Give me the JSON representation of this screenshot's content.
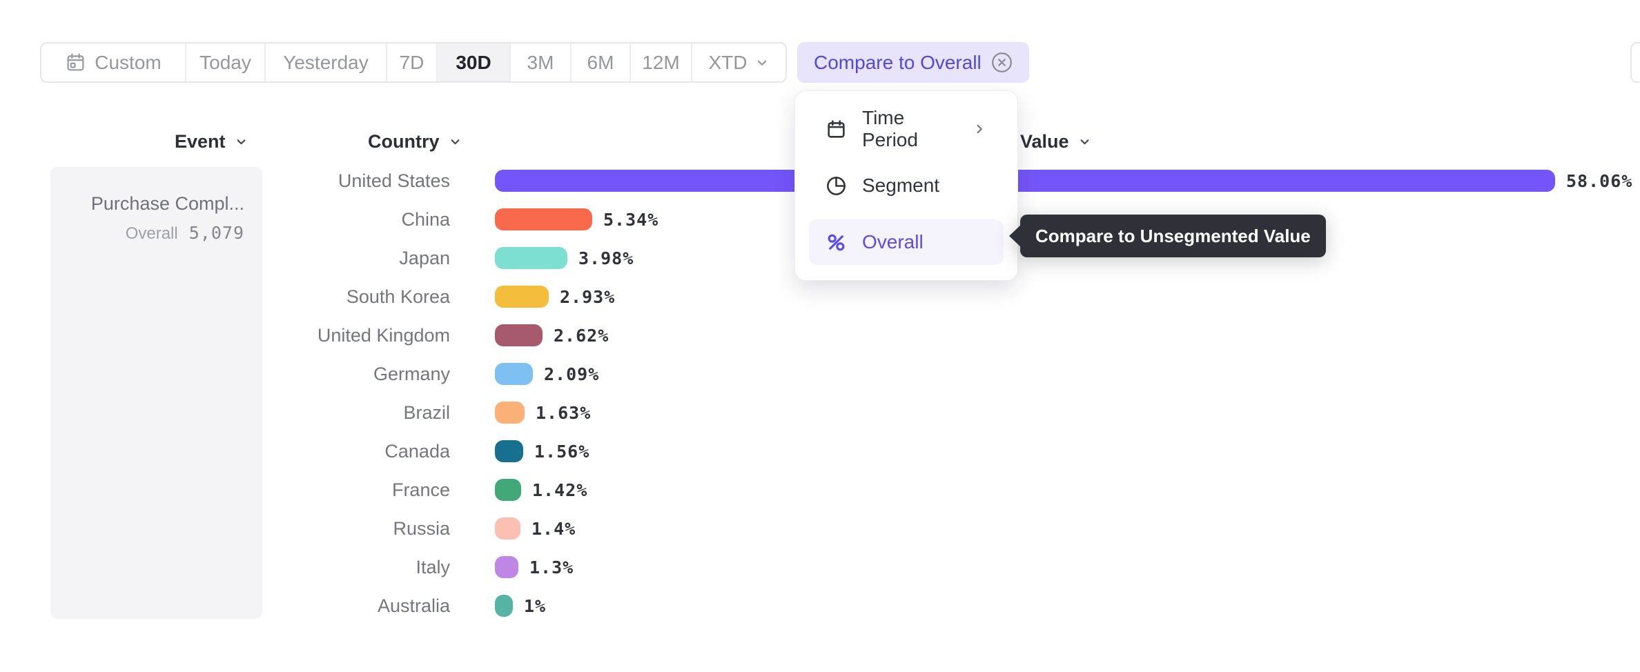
{
  "toolbar": {
    "items": [
      "Custom",
      "Today",
      "Yesterday",
      "7D",
      "30D",
      "3M",
      "6M",
      "12M",
      "XTD"
    ],
    "selected": "30D"
  },
  "compare_button": {
    "label": "Compare to Overall"
  },
  "dropdown_menu": {
    "items": [
      {
        "label": "Time Period",
        "icon": "calendar-icon",
        "submenu": true,
        "selected": false
      },
      {
        "label": "Segment",
        "icon": "segment-icon",
        "submenu": false,
        "selected": false
      },
      {
        "label": "Overall",
        "icon": "percent-icon",
        "submenu": false,
        "selected": true
      }
    ]
  },
  "tooltip": {
    "text": "Compare to Unsegmented Value"
  },
  "columns": {
    "event": "Event",
    "country": "Country",
    "value": "Value"
  },
  "event_panel": {
    "event_name": "Purchase Compl...",
    "overall_label": "Overall",
    "overall_value": "5,079"
  },
  "chart_data": {
    "type": "bar",
    "orientation": "horizontal",
    "categories": [
      "United States",
      "China",
      "Japan",
      "South Korea",
      "United Kingdom",
      "Germany",
      "Brazil",
      "Canada",
      "France",
      "Russia",
      "Italy",
      "Australia"
    ],
    "values": [
      58.06,
      5.34,
      3.98,
      2.93,
      2.62,
      2.09,
      1.63,
      1.56,
      1.42,
      1.4,
      1.3,
      1
    ],
    "value_labels": [
      "58.06%",
      "5.34%",
      "3.98%",
      "2.93%",
      "2.62%",
      "2.09%",
      "1.63%",
      "1.56%",
      "1.42%",
      "1.4%",
      "1.3%",
      "1%"
    ],
    "bar_colors": [
      "#7455FA",
      "#F96A4C",
      "#7DDFD2",
      "#F4BD3C",
      "#A75A6E",
      "#7EC0F2",
      "#FBB078",
      "#17708F",
      "#43A878",
      "#FBC0B2",
      "#BF86E6",
      "#56B4A5"
    ],
    "unit": "%",
    "xlabel": "Country",
    "ylabel": "Value"
  },
  "colors": {
    "accent_purple": "#5B4BEA",
    "compare_chip_bg": "#E8E4FB",
    "selected_segment_bg": "#F2F2F4",
    "tooltip_bg": "#2F3038"
  }
}
